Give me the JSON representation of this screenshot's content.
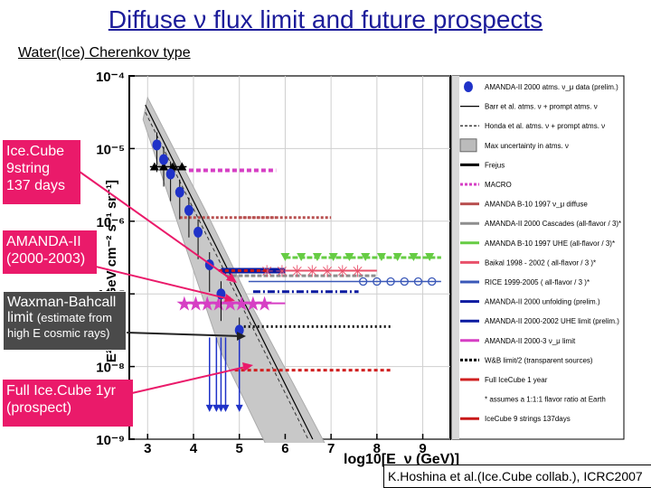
{
  "title_text": "Diffuse ν flux limit and future prospects",
  "subtitle": "Water(Ice) Cherenkov type",
  "callouts": {
    "icecube9": [
      "Ice.Cube",
      "9string",
      "137 days"
    ],
    "amanda": [
      "AMANDA-II",
      "(2000-2003)"
    ],
    "wb_main": [
      "Waxman-Bahcall",
      "limit"
    ],
    "wb_note": [
      "(estimate from",
      "high E cosmic rays)"
    ],
    "fullic": [
      "Full Ice.Cube 1yr",
      "(prospect)"
    ]
  },
  "credit": "K.Hoshina et al.(Ice.Cube collab.), ICRC2007",
  "colors": {
    "title": "#1c1c9a",
    "callout": "#ea1a6a",
    "amanda_points": "#1f32c8",
    "macro": "#d63fc4",
    "amanda_b10_diffuse": "#b85050",
    "cascades": "#8e8e8e",
    "uhe_b10": "#66cc44",
    "baikal": "#e8506a",
    "rice": "#3a58b8",
    "unfolding": "#0a1aa0",
    "uhe_limit": "#0a1aa0",
    "amanda_3nu": "#d63fc4",
    "wb_half": "#111111",
    "full_icecube": "#d02020",
    "ic9": "#c81818"
  },
  "chart_data": {
    "type": "scatter",
    "xlabel": "log10[E_ν (GeV)]",
    "ylabel": "E² dN/dE [GeV cm⁻² s⁻¹ sr⁻¹]",
    "xlim": [
      2.6,
      9.6
    ],
    "ylim_log10": [
      -9,
      -4
    ],
    "x_ticks": [
      "3",
      "4",
      "5",
      "6",
      "7",
      "8",
      "9"
    ],
    "y_ticks": [
      "10⁻⁴",
      "10⁻⁵",
      "10⁻⁶",
      "10⁻⁷",
      "10⁻⁸",
      "10⁻⁹"
    ],
    "grid": true,
    "legend_position": "right",
    "legend": [
      {
        "label": "AMANDA-II 2000 atms. ν_μ data (prelim.)"
      },
      {
        "label": "Barr et al. atms. ν + prompt atms. ν"
      },
      {
        "label": "Honda et al. atms. ν + prompt atms. ν"
      },
      {
        "label": "Max uncertainty in atms. ν"
      },
      {
        "label": "Frejus"
      },
      {
        "label": "MACRO"
      },
      {
        "label": "AMANDA B-10 1997 ν_μ diffuse"
      },
      {
        "label": "AMANDA-II 2000 Cascades (all-flavor / 3)*"
      },
      {
        "label": "AMANDA B-10 1997 UHE (all-flavor / 3)*"
      },
      {
        "label": "Baikal 1998 - 2002 ( all-flavor / 3 )*"
      },
      {
        "label": "RICE 1999-2005 ( all-flavor / 3 )*"
      },
      {
        "label": "AMANDA-II 2000 unfolding (prelim.)"
      },
      {
        "label": "AMANDA-II 2000-2002 UHE limit (prelim.)"
      },
      {
        "label": "AMANDA-II 2000-3 ν_μ limit"
      },
      {
        "label": "W&B limit/2 (transparent sources)"
      },
      {
        "label": "Full IceCube 1 year"
      },
      {
        "label": "* assumes a 1:1:1 flavor ratio at Earth"
      },
      {
        "label": "IceCube 9 strings 137days"
      }
    ],
    "amanda_points": {
      "x": [
        3.2,
        3.35,
        3.5,
        3.7,
        3.9,
        4.1,
        4.35,
        4.6,
        5.0
      ],
      "y_log10": [
        -4.95,
        -5.15,
        -5.35,
        -5.6,
        -5.85,
        -6.15,
        -6.6,
        -7.0,
        -7.5
      ]
    },
    "amanda_upper_limits": {
      "x": [
        4.35,
        4.5,
        4.6,
        4.7,
        5.0
      ],
      "y_log10": [
        -8.6,
        -8.6,
        -8.6,
        -8.6,
        -8.6
      ]
    },
    "frejus": {
      "x": [
        3.15,
        3.35,
        3.55,
        3.75
      ],
      "y_log10": [
        -5.25,
        -5.25,
        -5.25,
        -5.25
      ]
    },
    "limits": [
      {
        "x": [
          3.9,
          5.8
        ],
        "y_log10": -5.3
      },
      {
        "x": [
          3.7,
          5.8
        ],
        "y_log10": -5.95
      },
      {
        "x": [
          5.0,
          7.0
        ],
        "y_log10": -5.95
      },
      {
        "x": [
          6.0,
          9.4
        ],
        "y_log10": -6.5
      },
      {
        "x": [
          4.6,
          8.0
        ],
        "y_log10": -6.68
      },
      {
        "x": [
          5.2,
          9.4
        ],
        "y_log10": -6.83
      },
      {
        "x": [
          4.6,
          6.0
        ],
        "y_log10": -6.68
      },
      {
        "x": [
          5.3,
          7.6
        ],
        "y_log10": -6.97
      },
      {
        "x": [
          3.9,
          6.0
        ],
        "y_log10": -7.13
      },
      {
        "x": [
          5.0,
          8.3
        ],
        "y_log10": -7.45
      },
      {
        "x": [
          4.9,
          8.3
        ],
        "y_log10": -8.05
      },
      {
        "x": [
          4.7,
          8.0
        ],
        "y_log10": -6.75
      }
    ],
    "amanda_3nu": {
      "x": [
        3.75,
        5.8
      ],
      "y_log10": -7.13
    }
  }
}
